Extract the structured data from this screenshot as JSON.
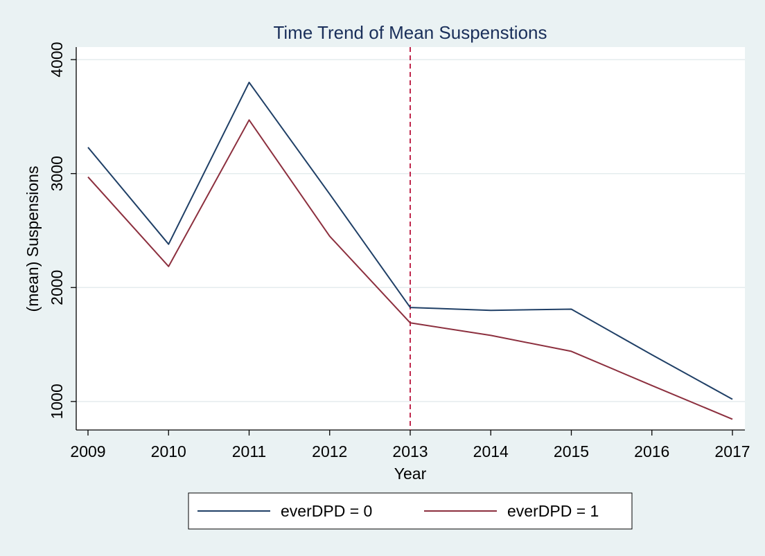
{
  "chart_data": {
    "type": "line",
    "title": "Time Trend of Mean Suspenstions",
    "xlabel": "Year",
    "ylabel": "(mean) Suspensions",
    "x": [
      2009,
      2010,
      2011,
      2012,
      2013,
      2014,
      2015,
      2016,
      2017
    ],
    "x_ticks": [
      "2009",
      "2010",
      "2011",
      "2012",
      "2013",
      "2014",
      "2015",
      "2016",
      "2017"
    ],
    "y_ticks": [
      "1000",
      "2000",
      "3000",
      "4000"
    ],
    "xlim": [
      2009,
      2017
    ],
    "ylim": [
      750,
      4110
    ],
    "grid": true,
    "reference_line": {
      "x": 2013,
      "style": "dashed",
      "color": "#c0284d"
    },
    "legend_position": "bottom",
    "series": [
      {
        "name": "everDPD = 0",
        "color": "#1f3f66",
        "values": [
          3230,
          2380,
          3800,
          2820,
          1825,
          1800,
          1810,
          1410,
          1020
        ]
      },
      {
        "name": "everDPD = 1",
        "color": "#8c2f3e",
        "values": [
          2970,
          2185,
          3470,
          2450,
          1690,
          1580,
          1440,
          1140,
          845
        ]
      }
    ]
  }
}
